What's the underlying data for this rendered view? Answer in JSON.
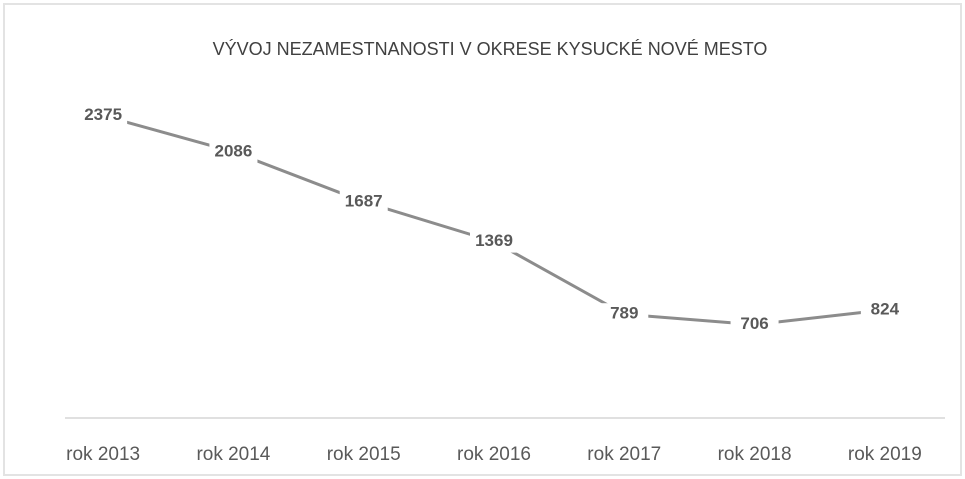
{
  "chart_data": {
    "type": "line",
    "title": "VÝVOJ NEZAMESTNANOSTI V OKRESE KYSUCKÉ NOVÉ MESTO",
    "categories": [
      "rok 2013",
      "rok 2014",
      "rok 2015",
      "rok 2016",
      "rok 2017",
      "rok 2018",
      "rok 2019"
    ],
    "values": [
      2375,
      2086,
      1687,
      1369,
      789,
      706,
      824
    ],
    "color": "#8c8c8c",
    "ylim": [
      0,
      2500
    ]
  }
}
